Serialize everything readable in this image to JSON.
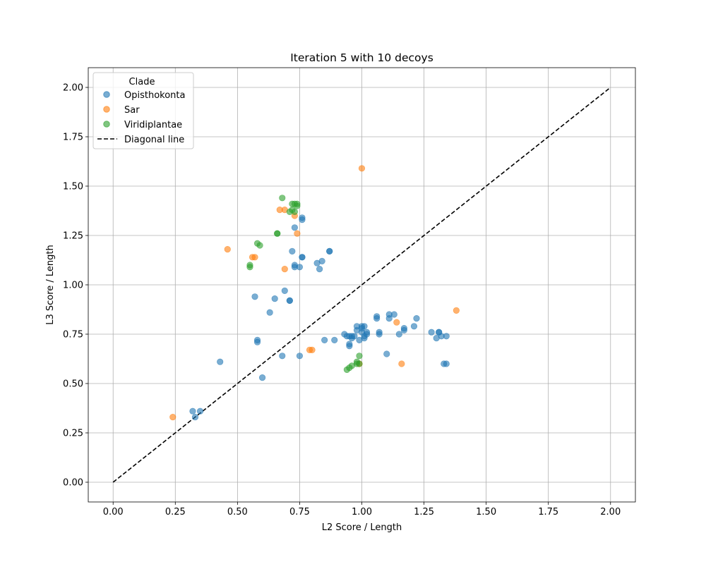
{
  "chart_data": {
    "type": "scatter",
    "title": "Iteration 5 with 10 decoys",
    "xlabel": "L2 Score / Length",
    "ylabel": "L3 Score / Length",
    "xlim": [
      -0.1,
      2.1
    ],
    "ylim": [
      -0.1,
      2.1
    ],
    "xticks": [
      "0.00",
      "0.25",
      "0.50",
      "0.75",
      "1.00",
      "1.25",
      "1.50",
      "1.75",
      "2.00"
    ],
    "yticks": [
      "0.00",
      "0.25",
      "0.50",
      "0.75",
      "1.00",
      "1.25",
      "1.50",
      "1.75",
      "2.00"
    ],
    "grid": true,
    "legend": {
      "title": "Clade",
      "position": "top-left",
      "entries": [
        "Opisthokonta",
        "Sar",
        "Viridiplantae",
        "Diagonal line"
      ]
    },
    "diagonal": {
      "name": "Diagonal line",
      "x": [
        0,
        2
      ],
      "y": [
        0,
        2
      ],
      "color": "#000000",
      "style": "dashed"
    },
    "series": [
      {
        "name": "Opisthokonta",
        "color": "#1f77b4",
        "points": [
          [
            0.32,
            0.36
          ],
          [
            0.33,
            0.33
          ],
          [
            0.35,
            0.36
          ],
          [
            0.43,
            0.61
          ],
          [
            0.57,
            0.94
          ],
          [
            0.58,
            0.72
          ],
          [
            0.58,
            0.71
          ],
          [
            0.6,
            0.53
          ],
          [
            0.63,
            0.86
          ],
          [
            0.65,
            0.93
          ],
          [
            0.68,
            0.64
          ],
          [
            0.69,
            0.97
          ],
          [
            0.71,
            0.92
          ],
          [
            0.71,
            0.92
          ],
          [
            0.72,
            1.17
          ],
          [
            0.73,
            1.29
          ],
          [
            0.73,
            1.1
          ],
          [
            0.73,
            1.09
          ],
          [
            0.75,
            0.64
          ],
          [
            0.75,
            1.09
          ],
          [
            0.76,
            1.14
          ],
          [
            0.76,
            1.14
          ],
          [
            0.76,
            1.34
          ],
          [
            0.76,
            1.33
          ],
          [
            0.82,
            1.11
          ],
          [
            0.83,
            1.08
          ],
          [
            0.84,
            1.12
          ],
          [
            0.85,
            0.72
          ],
          [
            0.87,
            1.17
          ],
          [
            0.87,
            1.17
          ],
          [
            0.89,
            0.72
          ],
          [
            0.93,
            0.75
          ],
          [
            0.94,
            0.74
          ],
          [
            0.95,
            0.74
          ],
          [
            0.95,
            0.69
          ],
          [
            0.95,
            0.7
          ],
          [
            0.96,
            0.73
          ],
          [
            0.96,
            0.74
          ],
          [
            0.97,
            0.74
          ],
          [
            0.98,
            0.77
          ],
          [
            0.98,
            0.79
          ],
          [
            0.99,
            0.72
          ],
          [
            1.0,
            0.76
          ],
          [
            1.0,
            0.78
          ],
          [
            1.0,
            0.79
          ],
          [
            1.01,
            0.73
          ],
          [
            1.01,
            0.74
          ],
          [
            1.01,
            0.79
          ],
          [
            1.02,
            0.75
          ],
          [
            1.02,
            0.76
          ],
          [
            1.06,
            0.83
          ],
          [
            1.06,
            0.84
          ],
          [
            1.07,
            0.75
          ],
          [
            1.07,
            0.76
          ],
          [
            1.1,
            0.65
          ],
          [
            1.11,
            0.83
          ],
          [
            1.11,
            0.85
          ],
          [
            1.13,
            0.85
          ],
          [
            1.15,
            0.75
          ],
          [
            1.17,
            0.77
          ],
          [
            1.17,
            0.78
          ],
          [
            1.21,
            0.79
          ],
          [
            1.22,
            0.83
          ],
          [
            1.28,
            0.76
          ],
          [
            1.3,
            0.73
          ],
          [
            1.31,
            0.76
          ],
          [
            1.31,
            0.76
          ],
          [
            1.32,
            0.74
          ],
          [
            1.33,
            0.6
          ],
          [
            1.34,
            0.6
          ],
          [
            1.34,
            0.74
          ]
        ]
      },
      {
        "name": "Sar",
        "color": "#ff7f0e",
        "points": [
          [
            0.24,
            0.33
          ],
          [
            0.46,
            1.18
          ],
          [
            0.56,
            1.14
          ],
          [
            0.57,
            1.14
          ],
          [
            0.67,
            1.38
          ],
          [
            0.69,
            1.38
          ],
          [
            0.69,
            1.08
          ],
          [
            0.73,
            1.35
          ],
          [
            0.74,
            1.26
          ],
          [
            0.79,
            0.67
          ],
          [
            0.8,
            0.67
          ],
          [
            0.99,
            0.6
          ],
          [
            1.0,
            1.59
          ],
          [
            1.14,
            0.81
          ],
          [
            1.16,
            0.6
          ],
          [
            1.38,
            0.87
          ]
        ]
      },
      {
        "name": "Viridiplantae",
        "color": "#2ca02c",
        "points": [
          [
            0.55,
            1.09
          ],
          [
            0.55,
            1.1
          ],
          [
            0.58,
            1.21
          ],
          [
            0.59,
            1.2
          ],
          [
            0.66,
            1.26
          ],
          [
            0.66,
            1.26
          ],
          [
            0.68,
            1.44
          ],
          [
            0.71,
            1.37
          ],
          [
            0.72,
            1.38
          ],
          [
            0.72,
            1.41
          ],
          [
            0.73,
            1.37
          ],
          [
            0.73,
            1.41
          ],
          [
            0.74,
            1.4
          ],
          [
            0.74,
            1.41
          ],
          [
            0.94,
            0.57
          ],
          [
            0.95,
            0.58
          ],
          [
            0.96,
            0.59
          ],
          [
            0.98,
            0.6
          ],
          [
            0.98,
            0.61
          ],
          [
            0.99,
            0.64
          ],
          [
            0.99,
            0.6
          ]
        ]
      }
    ]
  }
}
